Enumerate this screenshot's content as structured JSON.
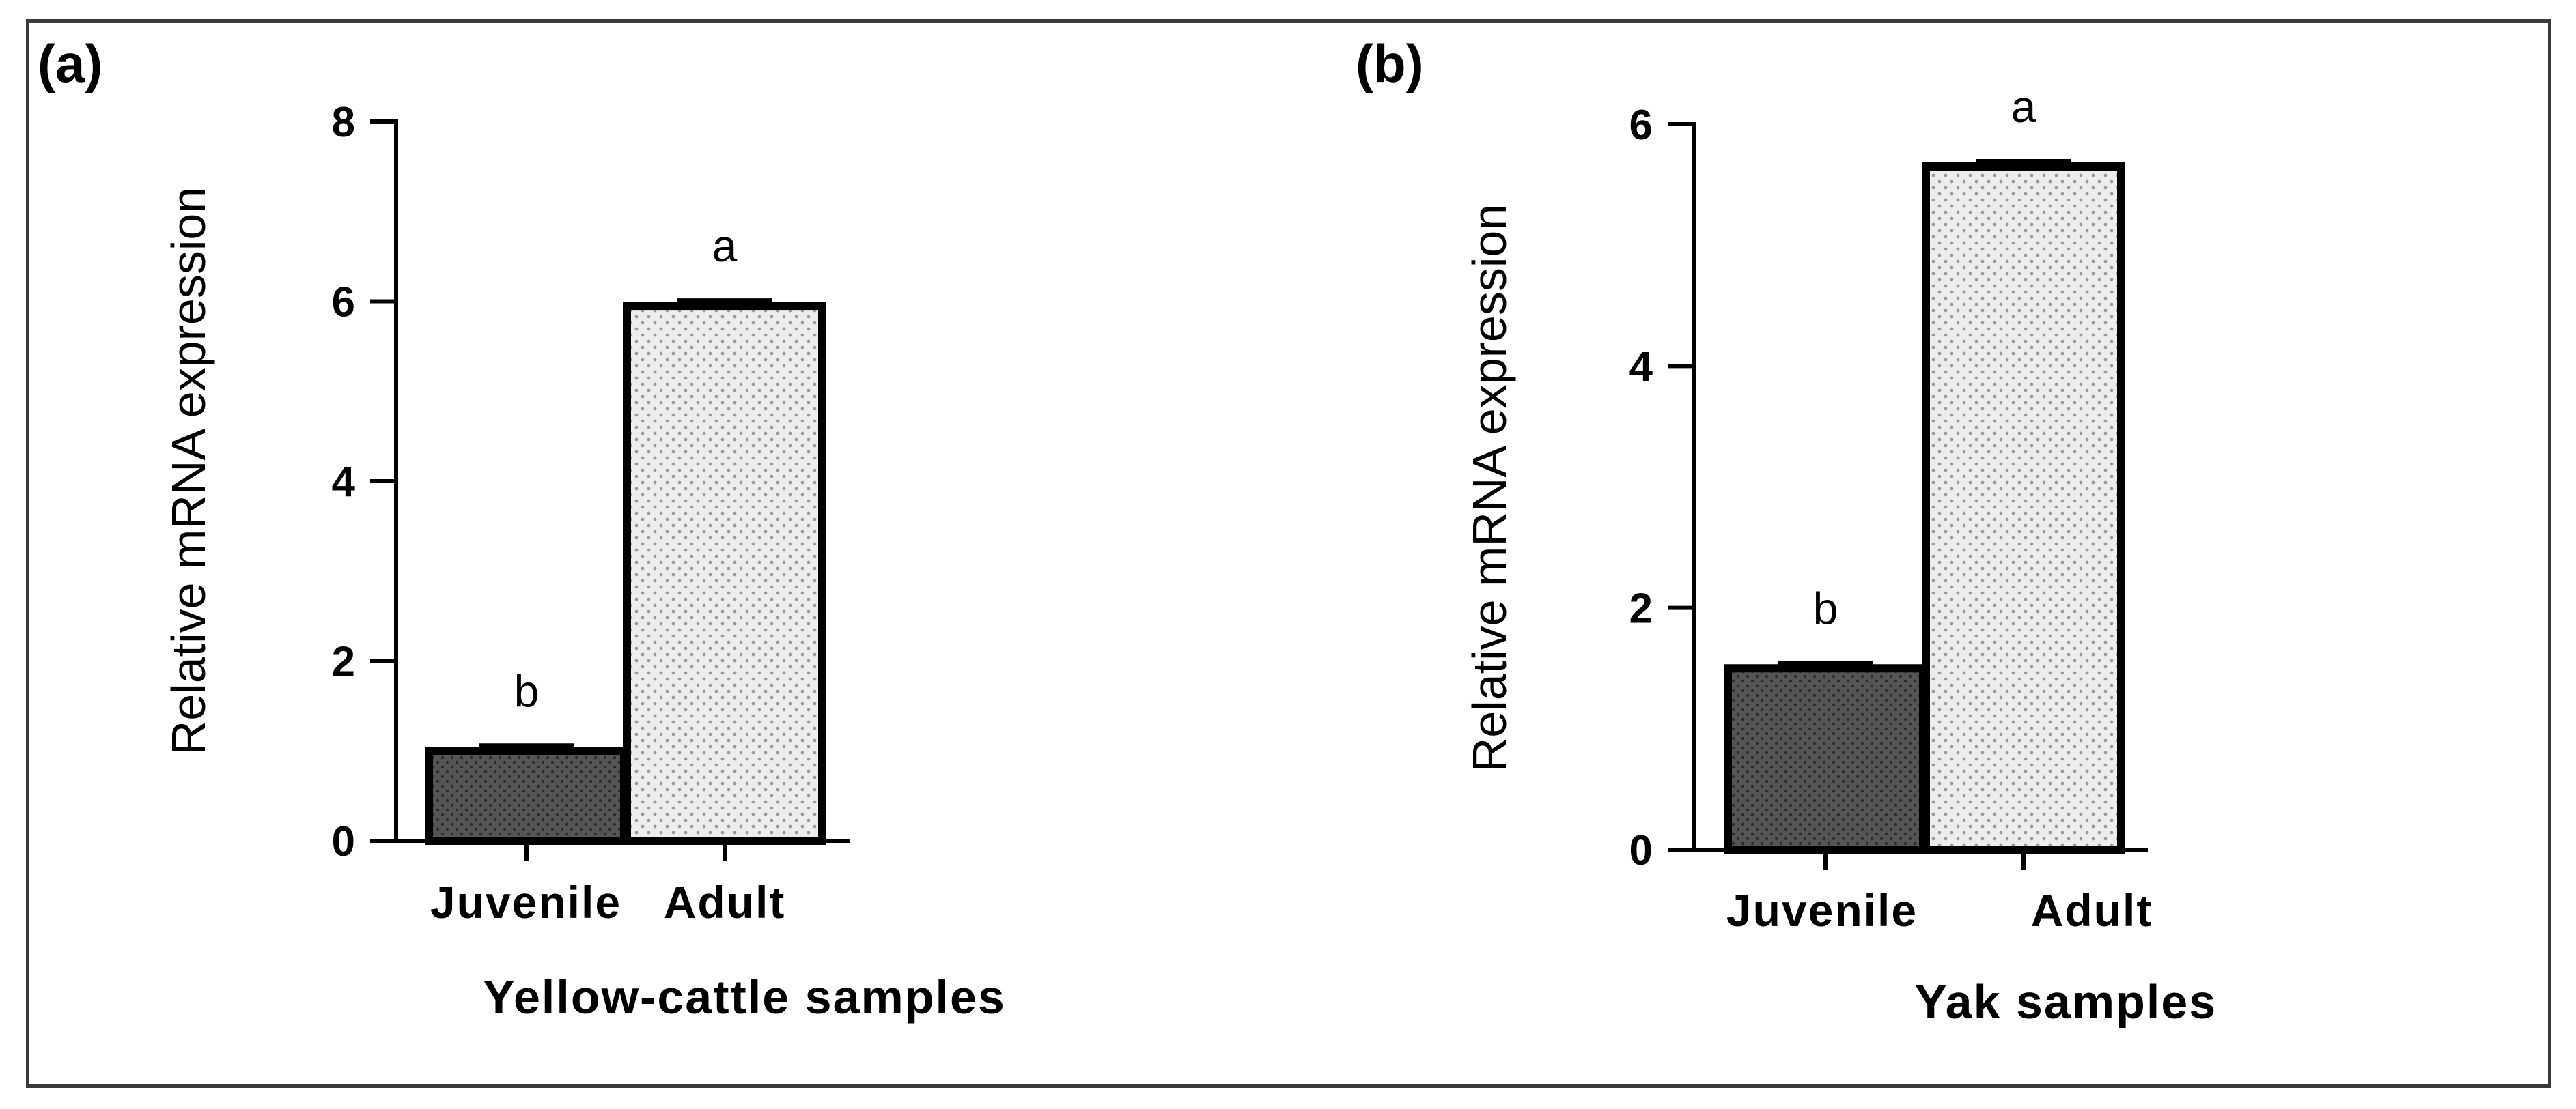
{
  "chart_data": [
    {
      "panel": "(a)",
      "type": "bar",
      "categories": [
        "Juvenile",
        "Adult"
      ],
      "values": [
        1.0,
        5.95
      ],
      "significance": [
        "b",
        "a"
      ],
      "xlabel": "Yellow-cattle samples",
      "ylabel": "Relative mRNA expression",
      "ylim": [
        0,
        8
      ],
      "yticks": [
        0,
        2,
        4,
        6,
        8
      ],
      "grid": false,
      "bar_fills": [
        "dark-dotted",
        "light-dotted"
      ]
    },
    {
      "panel": "(b)",
      "type": "bar",
      "categories": [
        "Juvenile",
        "Adult"
      ],
      "values": [
        1.5,
        5.65
      ],
      "significance": [
        "b",
        "a"
      ],
      "xlabel": "Yak samples",
      "ylabel": "Relative mRNA expression",
      "ylim": [
        0,
        6
      ],
      "yticks": [
        0,
        2,
        4,
        6
      ],
      "grid": false,
      "bar_fills": [
        "dark-dotted",
        "light-dotted"
      ]
    }
  ],
  "colors": {
    "dark_bar": "#555555",
    "dark_dot": "#2c2c2c",
    "light_bar": "#ededed",
    "light_dot": "#9a9a9a",
    "axis": "#000000",
    "frame": "#3a3a3a"
  }
}
